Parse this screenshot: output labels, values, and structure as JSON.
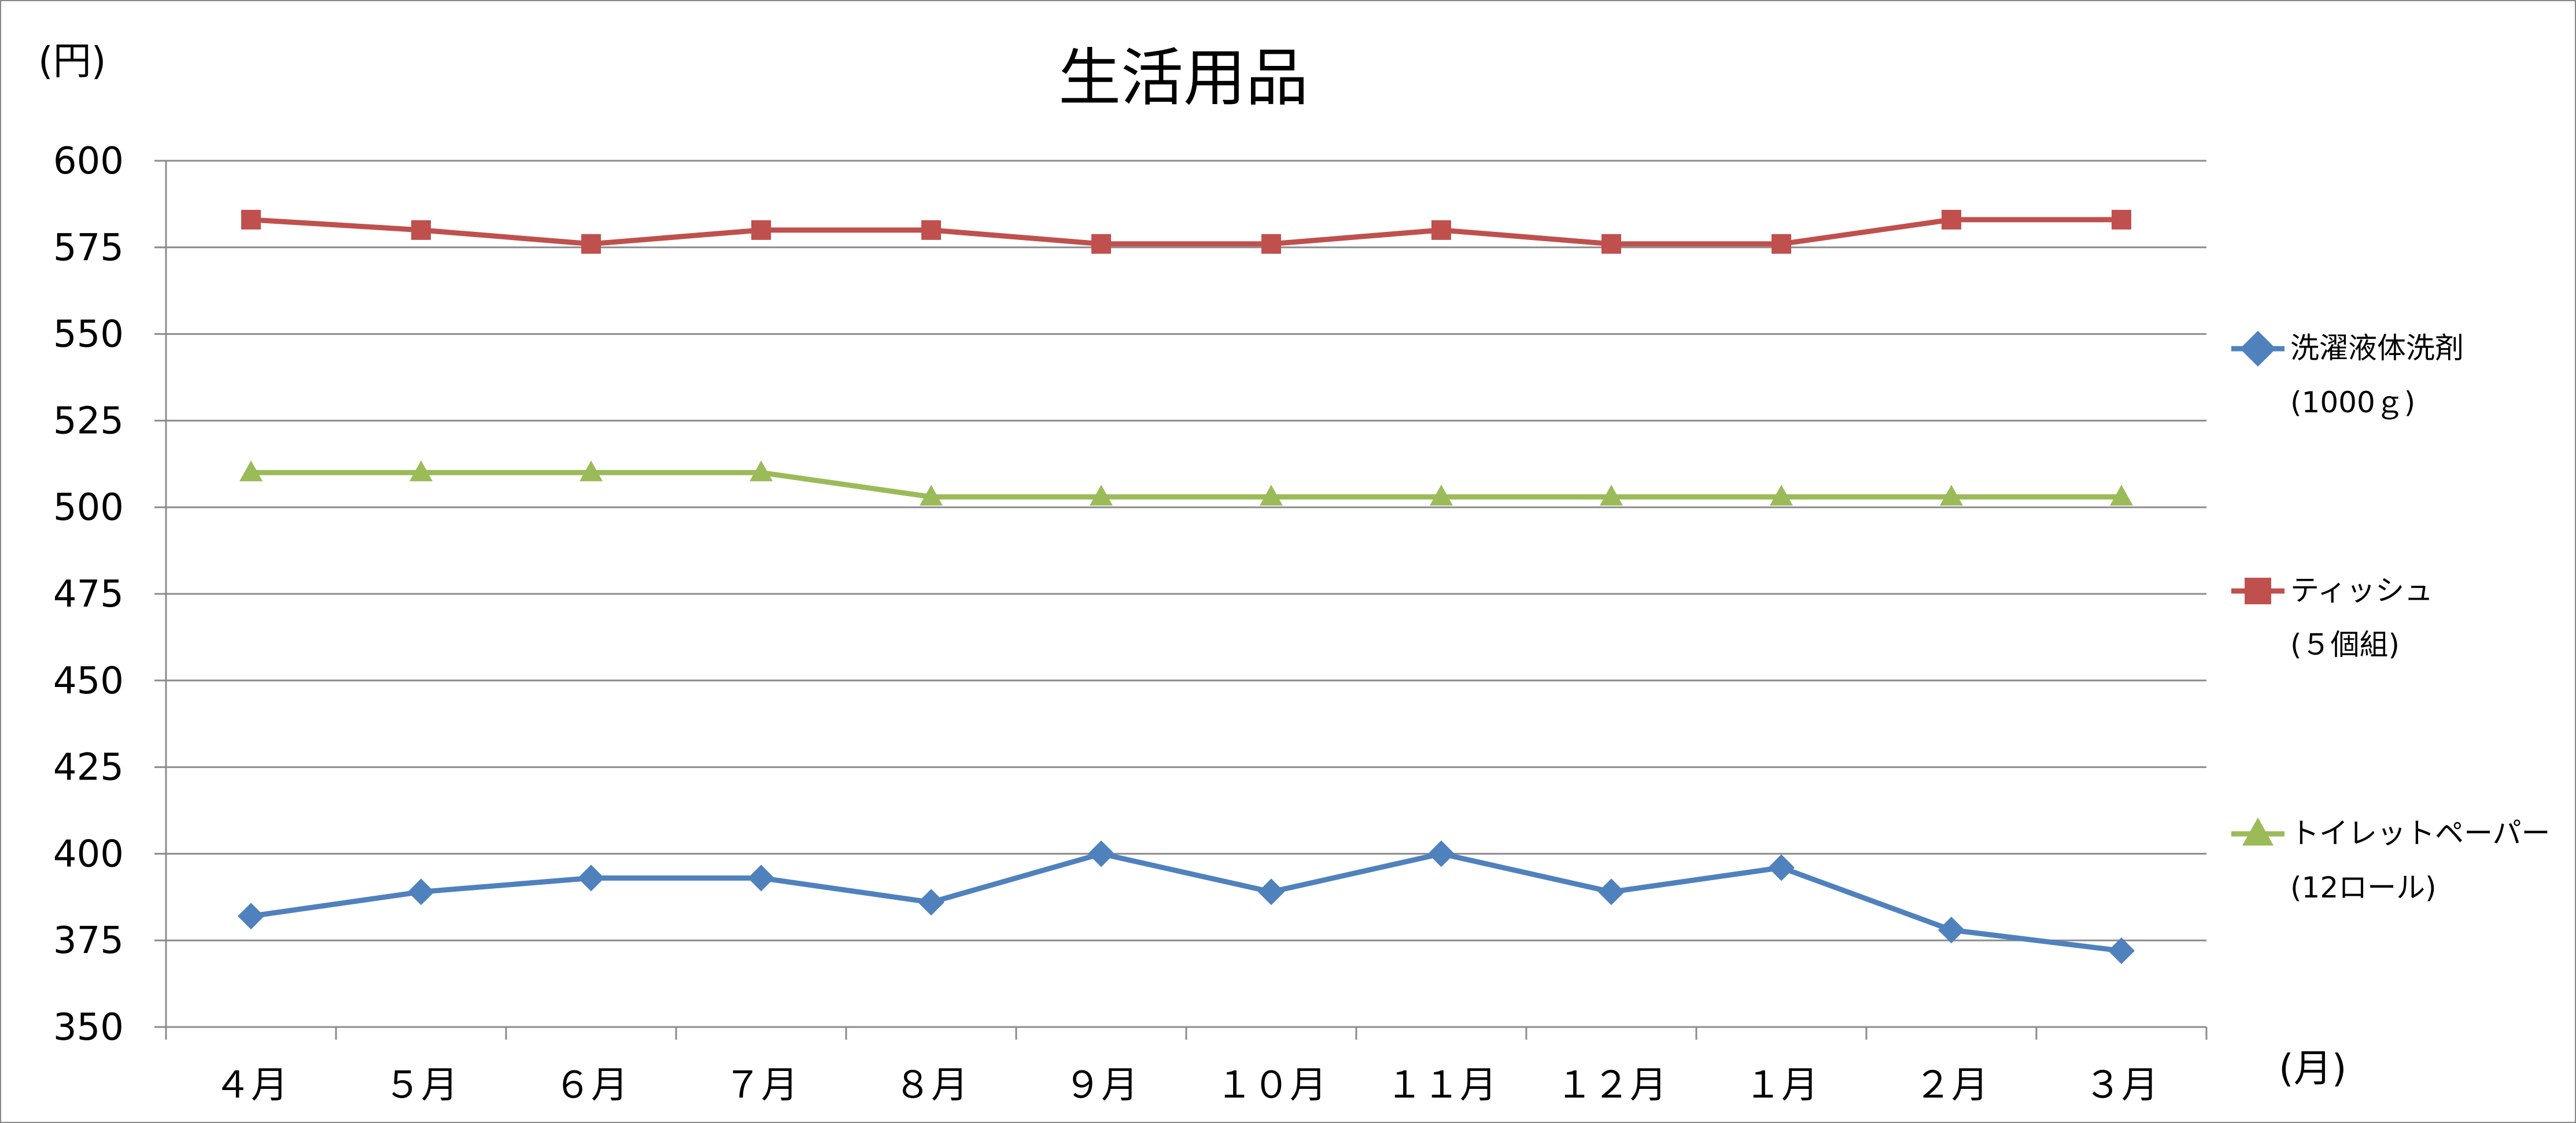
{
  "chart_data": {
    "type": "line",
    "title": "生活用品",
    "y_unit": "(円)",
    "x_unit": "(月)",
    "ylim": [
      350,
      600
    ],
    "yticks": [
      350,
      375,
      400,
      425,
      450,
      475,
      500,
      525,
      550,
      575,
      600
    ],
    "categories": [
      "４月",
      "５月",
      "６月",
      "７月",
      "８月",
      "９月",
      "１０月",
      "１１月",
      "１２月",
      "１月",
      "２月",
      "３月"
    ],
    "grid": true,
    "legend_position": "right",
    "series": [
      {
        "name_line1": "洗濯液体洗剤",
        "name_line2": "(1000ｇ)",
        "color": "#4F81BD",
        "marker": "diamond",
        "values": [
          382,
          389,
          393,
          393,
          386,
          400,
          389,
          400,
          389,
          396,
          378,
          372
        ]
      },
      {
        "name_line1": "ティッシュ",
        "name_line2": "(５個組)",
        "color": "#C0504D",
        "marker": "square",
        "values": [
          583,
          580,
          576,
          580,
          580,
          576,
          576,
          580,
          576,
          576,
          583,
          583
        ]
      },
      {
        "name_line1": "トイレットペーパー",
        "name_line2": "(12ロール)",
        "color": "#9BBB59",
        "marker": "triangle",
        "values": [
          510,
          510,
          510,
          510,
          503,
          503,
          503,
          503,
          503,
          503,
          503,
          503
        ]
      }
    ]
  }
}
